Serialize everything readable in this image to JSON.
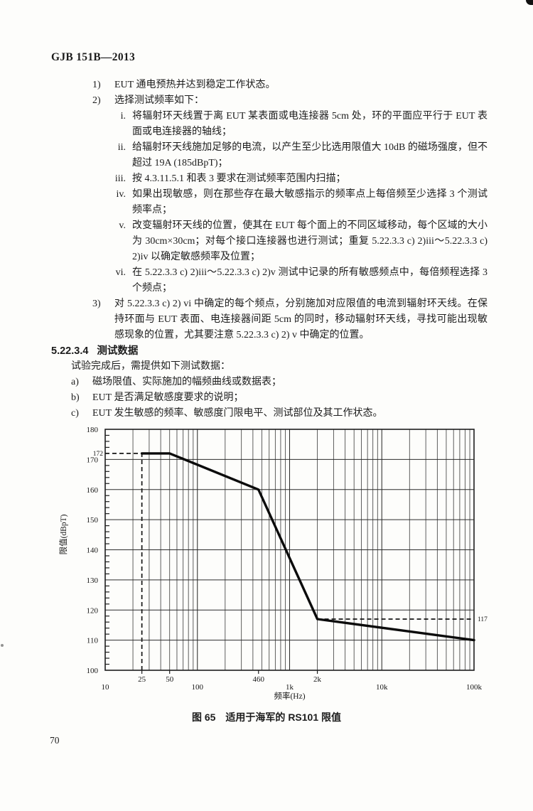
{
  "meta": {
    "ink": "#1c1c1c",
    "paper": "#fdfdfb"
  },
  "doc": {
    "header": "GJB 151B—2013",
    "page_number": "70",
    "list": [
      {
        "marker": "1)",
        "level": 1,
        "text": "EUT 通电预热并达到稳定工作状态。"
      },
      {
        "marker": "2)",
        "level": 1,
        "text": "选择测试频率如下："
      },
      {
        "marker": "i.",
        "level": 2,
        "text": "将辐射环天线置于离 EUT 某表面或电连接器 5cm 处，环的平面应平行于 EUT 表面或电连接器的轴线；"
      },
      {
        "marker": "ii.",
        "level": 2,
        "text": "给辐射环天线施加足够的电流，以产生至少比选用限值大 10dB 的磁场强度，但不超过 19A (185dBpT)；"
      },
      {
        "marker": "iii.",
        "level": 2,
        "text": "按 4.3.11.5.1 和表 3 要求在测试频率范围内扫描；"
      },
      {
        "marker": "iv.",
        "level": 2,
        "text": "如果出现敏感，则在那些存在最大敏感指示的频率点上每倍频至少选择 3 个测试频率点；"
      },
      {
        "marker": "v.",
        "level": 2,
        "text": "改变辐射环天线的位置，使其在 EUT 每个面上的不同区域移动，每个区域的大小为 30cm×30cm；对每个接口连接器也进行测试；重复 5.22.3.3 c) 2)iii～5.22.3.3 c) 2)iv 以确定敏感频率及位置；"
      },
      {
        "marker": "vi.",
        "level": 2,
        "text": "在 5.22.3.3 c) 2)iii～5.22.3.3 c) 2)v 测试中记录的所有敏感频点中，每倍频程选择 3 个频点；"
      },
      {
        "marker": "3)",
        "level": 1,
        "text": "对 5.22.3.3 c) 2) vi 中确定的每个频点，分别施加对应限值的电流到辐射环天线。在保持环面与 EUT 表面、电连接器间距 5cm 的同时，移动辐射环天线，寻找可能出现敏感现象的位置，尤其要注意 5.22.3.3 c) 2) v 中确定的位置。"
      }
    ],
    "section": {
      "number": "5.22.3.4",
      "title": "测试数据"
    },
    "intro": "试验完成后，需提供如下测试数据：",
    "sublist": [
      {
        "marker": "a)",
        "text": "磁场限值、实际施加的幅频曲线或数据表；"
      },
      {
        "marker": "b)",
        "text": "EUT 是否满足敏感度要求的说明；"
      },
      {
        "marker": "c)",
        "text": "EUT 发生敏感的频率、敏感度门限电平、测试部位及其工作状态。"
      }
    ],
    "figure_caption": "图 65　适用于海军的 RS101 限值"
  },
  "chart_data": {
    "type": "line",
    "title": "图 65 适用于海军的 RS101 限值",
    "xlabel": "频率(Hz)",
    "ylabel": "限值(dBpT)",
    "x_scale": "log",
    "xlim": [
      10,
      100000
    ],
    "ylim": [
      100,
      180
    ],
    "y_major_ticks": [
      100,
      110,
      120,
      130,
      140,
      150,
      160,
      170,
      180
    ],
    "y_minor_step": 2,
    "x_ticks": [
      {
        "value": 10,
        "label": "10",
        "row": 2
      },
      {
        "value": 25,
        "label": "25",
        "row": 1
      },
      {
        "value": 50,
        "label": "50",
        "row": 1
      },
      {
        "value": 100,
        "label": "100",
        "row": 2
      },
      {
        "value": 460,
        "label": "460",
        "row": 1
      },
      {
        "value": 1000,
        "label": "1k",
        "row": 2
      },
      {
        "value": 2000,
        "label": "2k",
        "row": 1
      },
      {
        "value": 10000,
        "label": "10k",
        "row": 2
      },
      {
        "value": 100000,
        "label": "100k",
        "row": 2
      }
    ],
    "series": [
      {
        "name": "RS101限值",
        "points": [
          [
            25,
            172
          ],
          [
            50,
            172
          ],
          [
            460,
            160
          ],
          [
            2000,
            117
          ],
          [
            100000,
            110
          ]
        ]
      }
    ],
    "annotations": [
      {
        "type": "hline-dashed",
        "y": 172,
        "x1": 10,
        "x2": 25,
        "label": "172",
        "label_pos": "left"
      },
      {
        "type": "vline-dashed",
        "x": 25,
        "y1": 100,
        "y2": 172
      },
      {
        "type": "hline-dashed",
        "y": 117,
        "x1": 2000,
        "x2": 100000,
        "label": "117",
        "label_pos": "right"
      }
    ],
    "grid": {
      "horizontal": "major-10dB",
      "vertical": "log-minor"
    },
    "legend": "none"
  }
}
